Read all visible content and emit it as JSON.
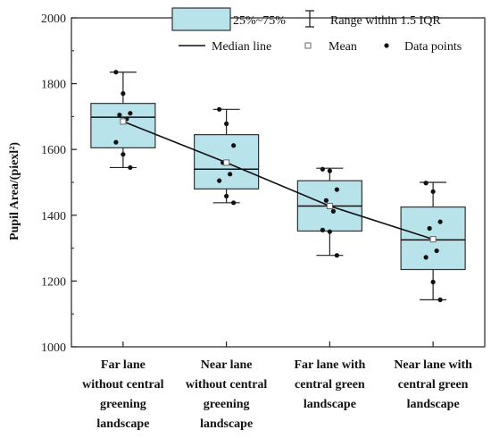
{
  "chart_data": {
    "type": "box",
    "ylabel": "Pupil Area/(piexl²)",
    "ylim": [
      1000,
      2000
    ],
    "yticks": [
      1000,
      1200,
      1400,
      1600,
      1800,
      2000
    ],
    "grid": false,
    "legend_position": "top-right",
    "legend": {
      "box": "25%~75%",
      "whisker": "Range within 1.5 IQR",
      "median": "Median line",
      "mean": "Mean",
      "points": "Data points"
    },
    "colors": {
      "box_fill": "#b9e3ea",
      "box_stroke": "#333333",
      "line": "#111111",
      "point": "#111111"
    },
    "categories": [
      {
        "label_lines": [
          "Far lane",
          "without central",
          "greening",
          "landscape"
        ],
        "q1": 1605,
        "q3": 1740,
        "median": 1698,
        "mean": 1685,
        "whisker_low": 1545,
        "whisker_high": 1835,
        "points": [
          1835,
          1770,
          1710,
          1705,
          1693,
          1622,
          1585,
          1545
        ]
      },
      {
        "label_lines": [
          "Near lane",
          "without central",
          "greening",
          "landscape"
        ],
        "q1": 1480,
        "q3": 1645,
        "median": 1540,
        "mean": 1560,
        "whisker_low": 1438,
        "whisker_high": 1722,
        "points": [
          1722,
          1678,
          1612,
          1560,
          1525,
          1505,
          1458,
          1438
        ]
      },
      {
        "label_lines": [
          "Far lane with",
          "central green",
          "landscape"
        ],
        "q1": 1352,
        "q3": 1505,
        "median": 1428,
        "mean": 1428,
        "whisker_low": 1278,
        "whisker_high": 1543,
        "points": [
          1540,
          1535,
          1478,
          1445,
          1412,
          1355,
          1350,
          1278
        ]
      },
      {
        "label_lines": [
          "Near lane with",
          "central green",
          "landscape"
        ],
        "q1": 1235,
        "q3": 1425,
        "median": 1325,
        "mean": 1327,
        "whisker_low": 1143,
        "whisker_high": 1500,
        "points": [
          1498,
          1472,
          1380,
          1360,
          1292,
          1272,
          1197,
          1143
        ]
      }
    ]
  }
}
